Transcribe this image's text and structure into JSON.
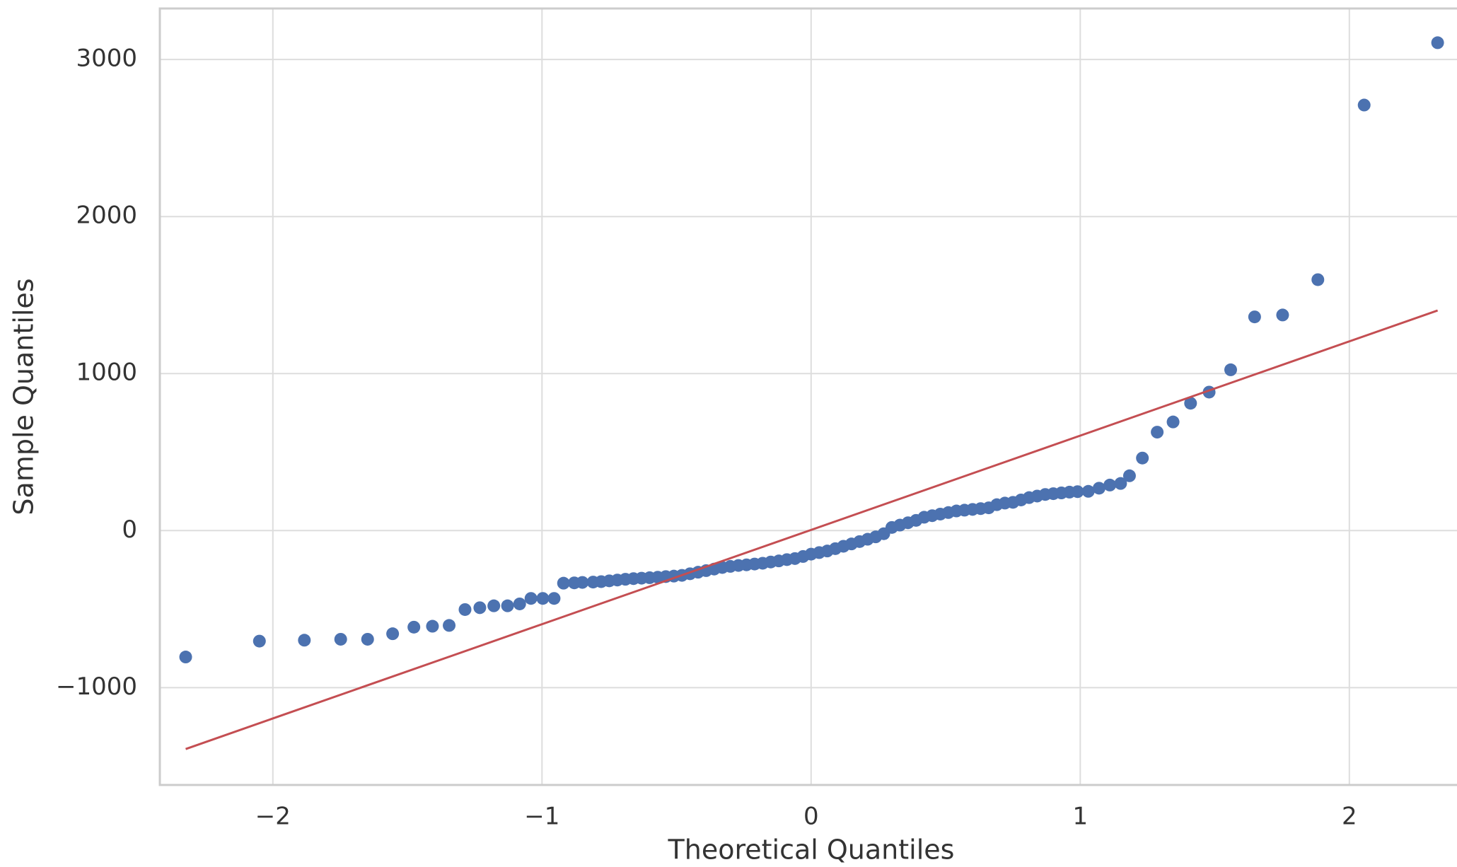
{
  "chart_data": {
    "type": "scatter",
    "x_label": "Theoretical Quantiles",
    "y_label": "Sample Quantiles",
    "xlim": [
      -2.42,
      2.4
    ],
    "ylim": [
      -1620,
      3325
    ],
    "xticks": [
      {
        "value": -2,
        "label": "−2"
      },
      {
        "value": -1,
        "label": "−1"
      },
      0,
      1,
      2
    ],
    "yticks": [
      {
        "value": -1000,
        "label": "−1000"
      },
      0,
      1000,
      2000,
      3000
    ],
    "grid": true,
    "series": [
      {
        "kind": "scatter",
        "color": "#4c72b0",
        "x": [
          -2.324,
          -2.05,
          -1.883,
          -1.748,
          -1.648,
          -1.555,
          -1.476,
          -1.407,
          -1.345,
          -1.286,
          -1.231,
          -1.179,
          -1.128,
          -1.083,
          -1.041,
          -0.997,
          -0.955,
          -0.92,
          -0.88,
          -0.85,
          -0.81,
          -0.78,
          -0.75,
          -0.72,
          -0.69,
          -0.66,
          -0.63,
          -0.6,
          -0.57,
          -0.54,
          -0.51,
          -0.48,
          -0.45,
          -0.42,
          -0.39,
          -0.36,
          -0.33,
          -0.3,
          -0.27,
          -0.24,
          -0.21,
          -0.18,
          -0.15,
          -0.12,
          -0.09,
          -0.06,
          -0.03,
          0,
          0.03,
          0.06,
          0.09,
          0.12,
          0.15,
          0.18,
          0.21,
          0.24,
          0.27,
          0.3,
          0.33,
          0.36,
          0.39,
          0.42,
          0.45,
          0.48,
          0.51,
          0.54,
          0.57,
          0.6,
          0.63,
          0.66,
          0.69,
          0.72,
          0.75,
          0.78,
          0.81,
          0.84,
          0.87,
          0.9,
          0.93,
          0.96,
          0.99,
          1.03,
          1.07,
          1.11,
          1.15,
          1.183,
          1.231,
          1.286,
          1.345,
          1.41,
          1.479,
          1.559,
          1.648,
          1.752,
          1.883,
          2.055,
          2.328
        ],
        "values": [
          -805,
          -704,
          -698,
          -692,
          -692,
          -657,
          -615,
          -609,
          -604,
          -503,
          -491,
          -479,
          -479,
          -467,
          -432,
          -432,
          -432,
          -335,
          -333,
          -330,
          -328,
          -325,
          -320,
          -315,
          -310,
          -306,
          -303,
          -300,
          -297,
          -293,
          -290,
          -285,
          -275,
          -265,
          -255,
          -245,
          -235,
          -228,
          -222,
          -218,
          -213,
          -208,
          -200,
          -193,
          -185,
          -178,
          -165,
          -150,
          -140,
          -130,
          -115,
          -100,
          -85,
          -70,
          -55,
          -40,
          -20,
          20,
          35,
          50,
          65,
          85,
          95,
          105,
          115,
          125,
          130,
          135,
          140,
          145,
          165,
          175,
          180,
          195,
          210,
          220,
          230,
          235,
          240,
          245,
          248,
          250,
          270,
          290,
          300,
          349,
          462,
          627,
          692,
          811,
          882,
          1024,
          1361,
          1373,
          1598,
          2710,
          3107
        ]
      },
      {
        "kind": "line",
        "color": "#c44e52",
        "x": [
          -2.324,
          2.328
        ],
        "values": [
          -1391,
          1402
        ]
      }
    ]
  }
}
